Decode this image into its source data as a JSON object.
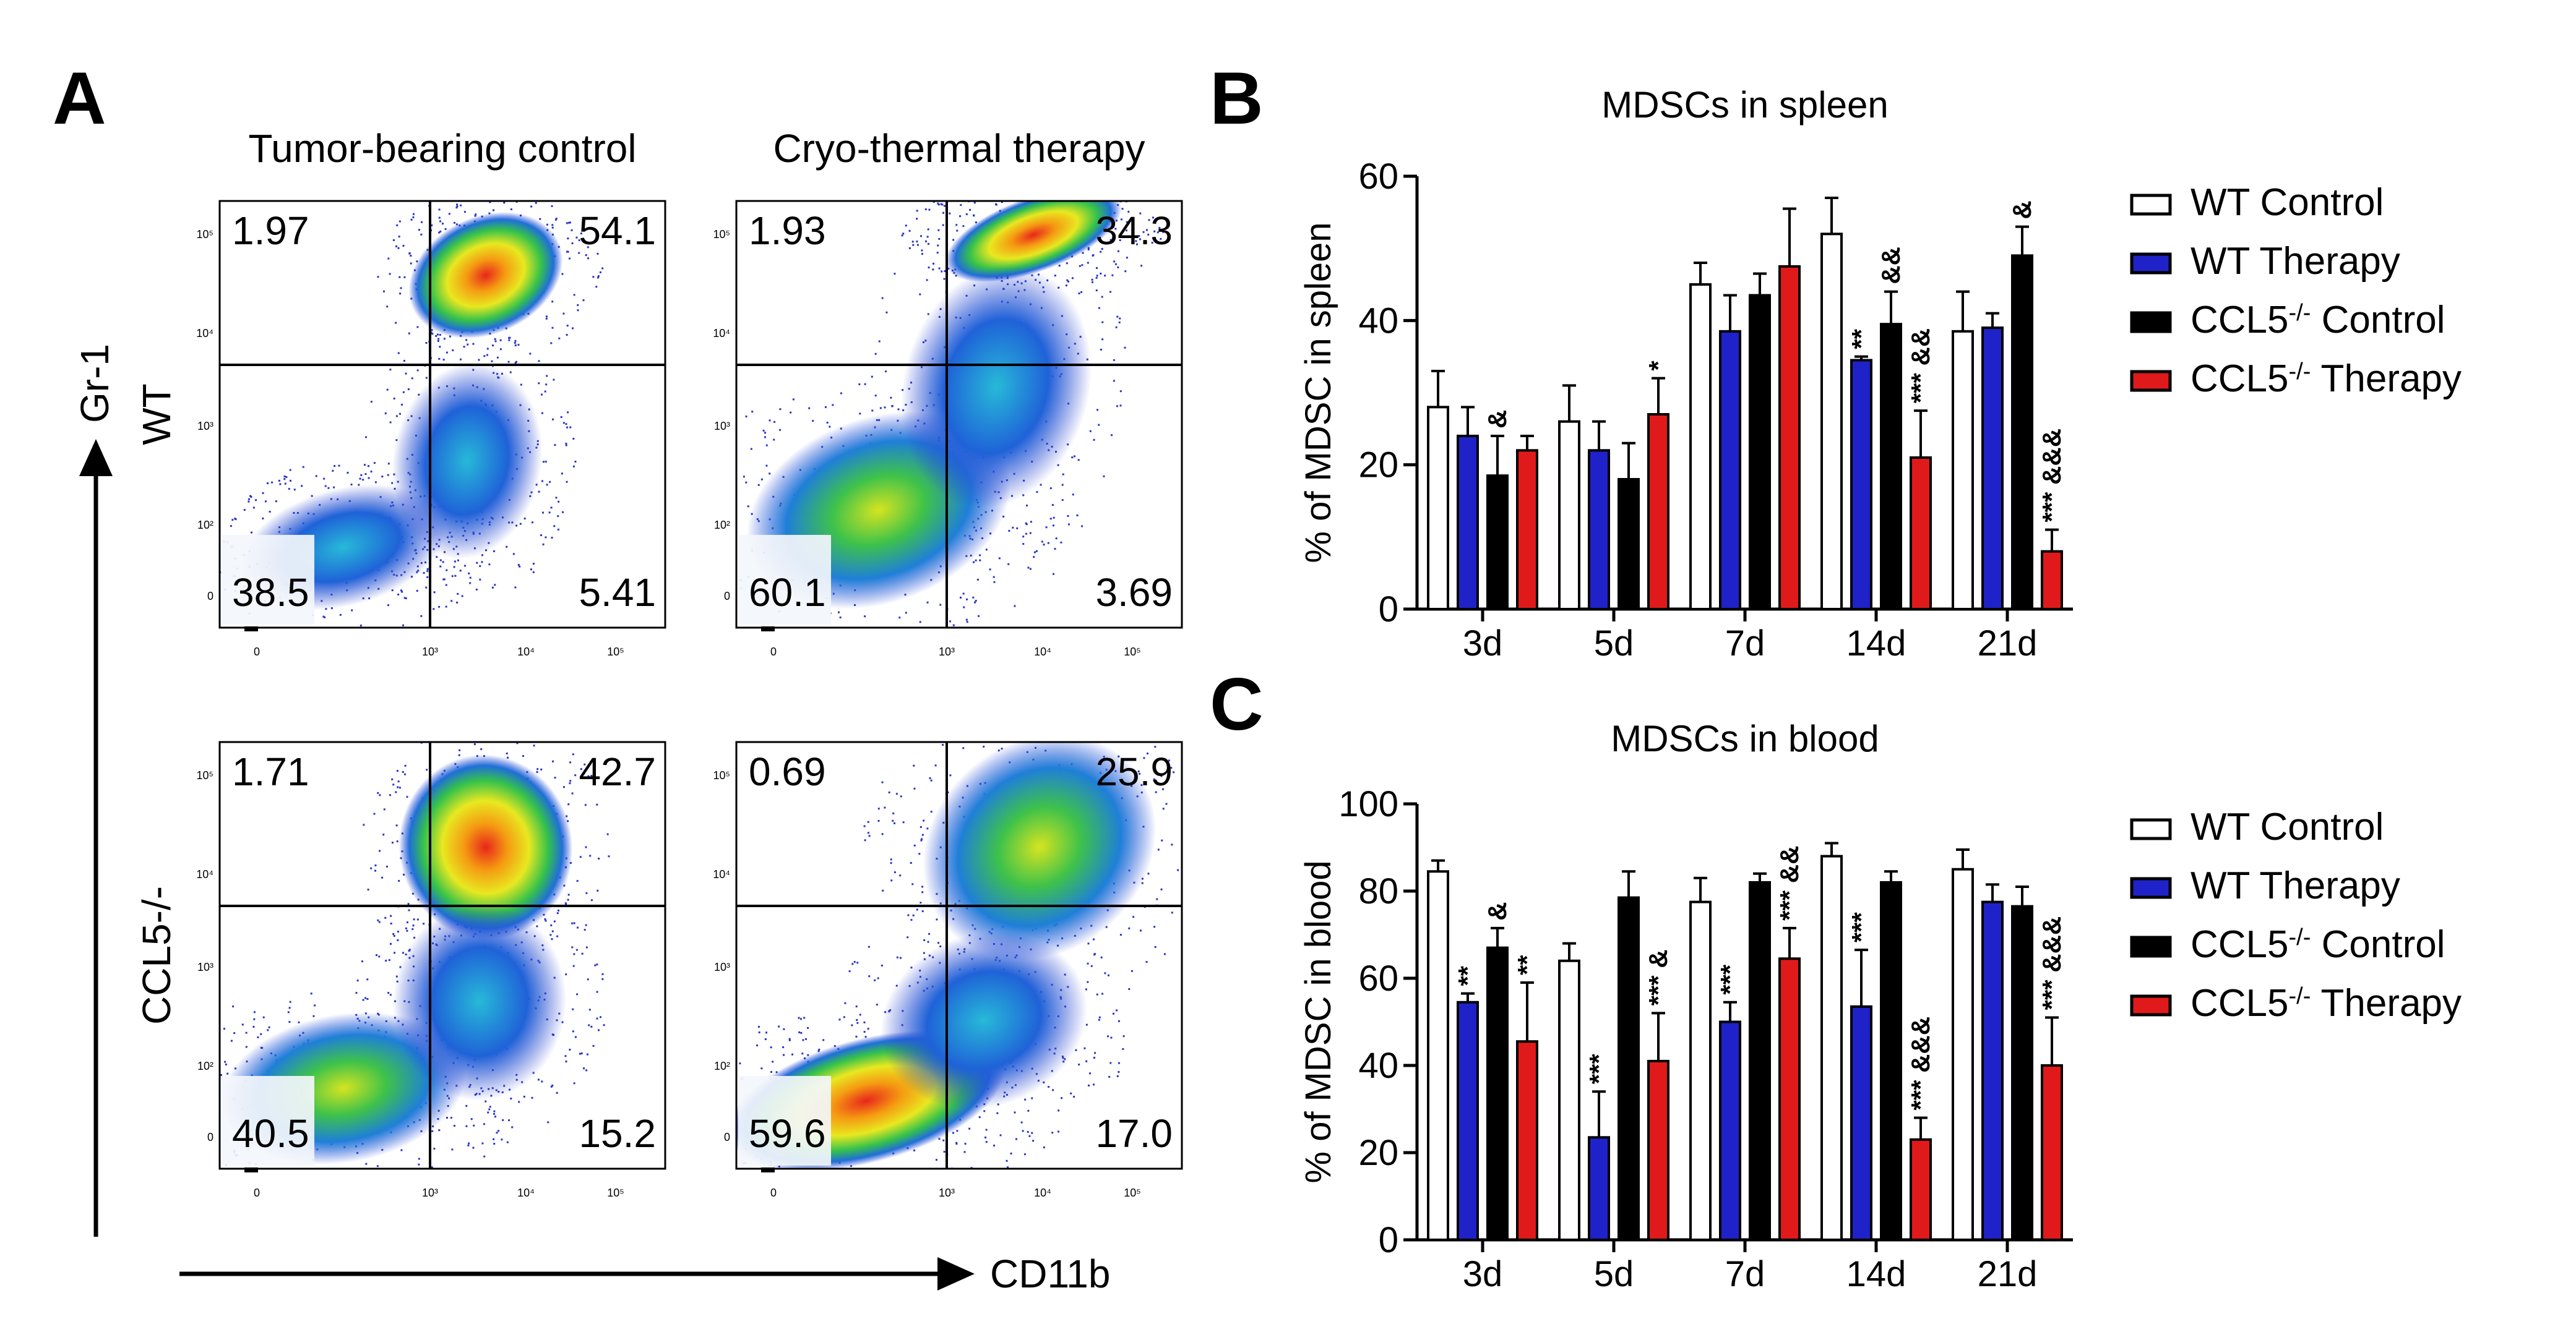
{
  "panels": {
    "a_letter": "A",
    "b_letter": "B",
    "c_letter": "C"
  },
  "flow": {
    "col_titles": [
      "Tumor-bearing control",
      "Cryo-thermal therapy"
    ],
    "row_labels": [
      "WT",
      "CCL5-/-"
    ],
    "x_axis_label": "CD11b",
    "y_axis_label": "Gr-1",
    "x_ticks": [
      "0",
      "10³",
      "10⁴",
      "10⁵"
    ],
    "y_ticks_top": [
      "10⁵",
      "10⁴",
      "10³",
      "10²",
      "0"
    ],
    "y_ticks_bottom": [
      "10⁵",
      "10⁴",
      "10³",
      "10²",
      "0"
    ],
    "plots": [
      {
        "name": "wt-control",
        "q": [
          "1.97",
          "54.1",
          "38.5",
          "5.41"
        ]
      },
      {
        "name": "wt-therapy",
        "q": [
          "1.93",
          "34.3",
          "60.1",
          "3.69"
        ]
      },
      {
        "name": "ccl5-control",
        "q": [
          "1.71",
          "42.7",
          "40.5",
          "15.2"
        ]
      },
      {
        "name": "ccl5-therapy",
        "q": [
          "0.69",
          "25.9",
          "59.6",
          "17.0"
        ]
      }
    ]
  },
  "legend": {
    "entries": [
      "WT Control",
      "WT Therapy",
      "CCL5-/- Control",
      "CCL5-/- Therapy"
    ],
    "colors": [
      "#ffffff",
      "#1f22c8",
      "#000000",
      "#e01a1a"
    ]
  },
  "chart_data": [
    {
      "type": "bar",
      "title": "MDSCs in spleen",
      "xlabel": "",
      "ylabel": "% of MDSC in spleen",
      "ylim": [
        0,
        60
      ],
      "yticks": [
        0,
        20,
        40,
        60
      ],
      "categories": [
        "3d",
        "5d",
        "7d",
        "14d",
        "21d"
      ],
      "series": [
        {
          "name": "WT Control",
          "values": [
            28,
            26,
            45,
            52,
            38.5
          ],
          "errors": [
            5,
            5,
            3,
            5,
            5.5
          ]
        },
        {
          "name": "WT Therapy",
          "values": [
            24,
            22,
            38.5,
            34.5,
            39
          ],
          "errors": [
            4,
            4,
            5,
            0.5,
            2
          ]
        },
        {
          "name": "CCL5-/- Control",
          "values": [
            18.5,
            18,
            43.5,
            39.5,
            49
          ],
          "errors": [
            5.5,
            5,
            3,
            4.5,
            4
          ]
        },
        {
          "name": "CCL5-/- Therapy",
          "values": [
            22,
            27,
            47.5,
            21,
            8
          ],
          "errors": [
            2,
            5,
            8,
            6.5,
            3
          ]
        }
      ],
      "annotations": [
        {
          "category": "3d",
          "series": "CCL5-/- Control",
          "text": "&"
        },
        {
          "category": "5d",
          "series": "CCL5-/- Therapy",
          "text": "*"
        },
        {
          "category": "14d",
          "series": "WT Therapy",
          "text": "**"
        },
        {
          "category": "14d",
          "series": "CCL5-/- Control",
          "text": "&&"
        },
        {
          "category": "14d",
          "series": "CCL5-/- Therapy",
          "text": "*** &&"
        },
        {
          "category": "21d",
          "series": "CCL5-/- Control",
          "text": "&"
        },
        {
          "category": "21d",
          "series": "CCL5-/- Therapy",
          "text": "*** &&&"
        }
      ]
    },
    {
      "type": "bar",
      "title": "MDSCs in blood",
      "xlabel": "",
      "ylabel": "% of MDSC in blood",
      "ylim": [
        0,
        100
      ],
      "yticks": [
        0,
        20,
        40,
        60,
        80,
        100
      ],
      "categories": [
        "3d",
        "5d",
        "7d",
        "14d",
        "21d"
      ],
      "series": [
        {
          "name": "WT Control",
          "values": [
            84.5,
            64,
            77.5,
            88,
            85
          ],
          "errors": [
            2.5,
            4,
            5.5,
            3,
            4.5
          ]
        },
        {
          "name": "WT Therapy",
          "values": [
            54.5,
            23.5,
            50,
            53.5,
            77.5
          ],
          "errors": [
            2,
            10.5,
            4.5,
            13,
            4
          ]
        },
        {
          "name": "CCL5-/- Control",
          "values": [
            67,
            78.5,
            82,
            82,
            76.5
          ],
          "errors": [
            4.5,
            6,
            2,
            2.5,
            4.5
          ]
        },
        {
          "name": "CCL5-/- Therapy",
          "values": [
            45.5,
            41,
            64.5,
            23,
            40
          ],
          "errors": [
            13.5,
            11,
            7,
            5,
            11
          ]
        }
      ],
      "annotations": [
        {
          "category": "3d",
          "series": "WT Therapy",
          "text": "**"
        },
        {
          "category": "3d",
          "series": "CCL5-/- Control",
          "text": "&"
        },
        {
          "category": "3d",
          "series": "CCL5-/- Therapy",
          "text": "**"
        },
        {
          "category": "5d",
          "series": "WT Therapy",
          "text": "***"
        },
        {
          "category": "5d",
          "series": "CCL5-/- Therapy",
          "text": "*** &"
        },
        {
          "category": "7d",
          "series": "WT Therapy",
          "text": "***"
        },
        {
          "category": "7d",
          "series": "CCL5-/- Therapy",
          "text": "*** &&"
        },
        {
          "category": "14d",
          "series": "WT Therapy",
          "text": "***"
        },
        {
          "category": "14d",
          "series": "CCL5-/- Therapy",
          "text": "*** &&&"
        },
        {
          "category": "21d",
          "series": "CCL5-/- Therapy",
          "text": "*** &&&"
        }
      ]
    }
  ]
}
